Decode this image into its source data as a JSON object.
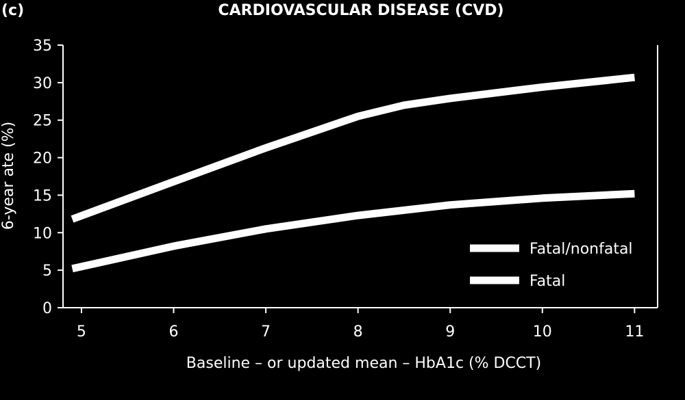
{
  "panel_label": "(c)",
  "chart_data": {
    "type": "line",
    "title": "CARDIOVASCULAR DISEASE (CVD)",
    "xlabel": "Baseline – or updated mean – HbA1c (% DCCT)",
    "ylabel": "6-year ate (%)",
    "xlim": [
      4.8,
      11.25
    ],
    "ylim": [
      0,
      35
    ],
    "xticks": [
      5,
      6,
      7,
      8,
      9,
      10,
      11
    ],
    "yticks": [
      0,
      5,
      10,
      15,
      20,
      25,
      30,
      35
    ],
    "grid": false,
    "legend_position": "lower-right",
    "series": [
      {
        "name": "Fatal/nonfatal",
        "color": "#ffffff",
        "x": [
          4.9,
          6,
          7,
          8,
          8.5,
          9,
          10,
          11
        ],
        "y": [
          11.8,
          16.8,
          21.3,
          25.5,
          27.0,
          27.9,
          29.4,
          30.7
        ]
      },
      {
        "name": "Fatal",
        "color": "#ffffff",
        "x": [
          4.9,
          6,
          7,
          8,
          9,
          10,
          11
        ],
        "y": [
          5.2,
          8.2,
          10.5,
          12.3,
          13.7,
          14.6,
          15.2
        ]
      }
    ]
  }
}
